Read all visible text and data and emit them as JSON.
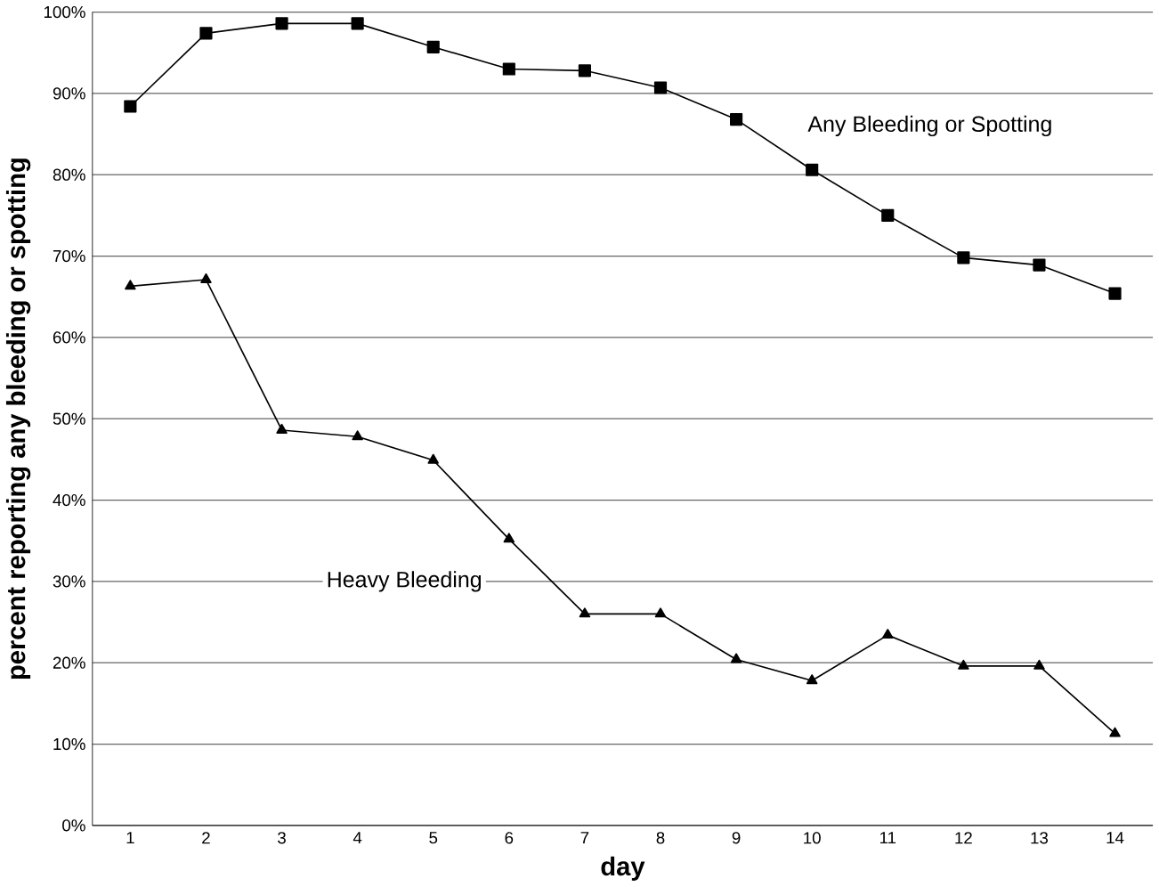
{
  "chart_data": {
    "type": "line",
    "xlabel": "day",
    "ylabel": "percent reporting any bleeding or spotting",
    "categories": [
      "1",
      "2",
      "3",
      "4",
      "5",
      "6",
      "7",
      "8",
      "9",
      "10",
      "11",
      "12",
      "13",
      "14"
    ],
    "series": [
      {
        "name": "Any Bleeding or Spotting",
        "color": "#000000",
        "marker": "square",
        "values": [
          88.4,
          97.4,
          98.6,
          98.6,
          95.7,
          93.0,
          92.8,
          90.7,
          86.8,
          80.6,
          75.0,
          69.8,
          68.9,
          65.4
        ]
      },
      {
        "name": "Heavy Bleeding",
        "color": "#000000",
        "marker": "triangle",
        "values": [
          66.3,
          67.1,
          48.6,
          47.8,
          44.9,
          35.2,
          26.0,
          26.0,
          20.4,
          17.8,
          23.4,
          19.6,
          19.6,
          11.3
        ]
      }
    ],
    "ylim": [
      0,
      100
    ],
    "yticks": [
      {
        "value": 0,
        "label": "0%"
      },
      {
        "value": 10,
        "label": "10%"
      },
      {
        "value": 20,
        "label": "20%"
      },
      {
        "value": 30,
        "label": "30%"
      },
      {
        "value": 40,
        "label": "40%"
      },
      {
        "value": 50,
        "label": "50%"
      },
      {
        "value": 60,
        "label": "60%"
      },
      {
        "value": 70,
        "label": "70%"
      },
      {
        "value": 80,
        "label": "80%"
      },
      {
        "value": 90,
        "label": "90%"
      },
      {
        "value": 100,
        "label": "100%"
      }
    ],
    "grid": "y",
    "line_style": "solid"
  }
}
